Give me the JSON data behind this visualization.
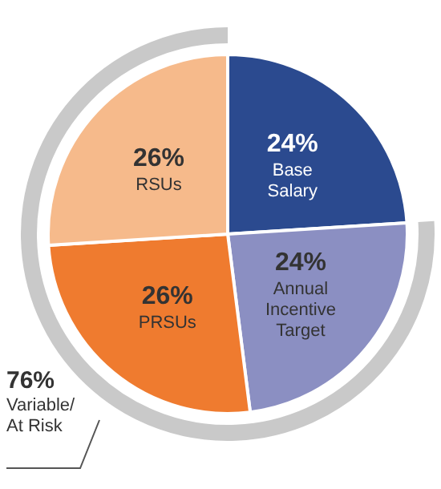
{
  "chart_data": {
    "type": "pie",
    "categories": [
      "Base Salary",
      "Annual Incentive Target",
      "PRSUs",
      "RSUs"
    ],
    "values": [
      24,
      24,
      26,
      26
    ],
    "colors": [
      "#2b4a8f",
      "#8b8fc2",
      "#ef7b2f",
      "#f6ba8b"
    ],
    "value_labels": [
      "24%",
      "24%",
      "26%",
      "26%"
    ],
    "annotations": [
      "76%\nVariable/\nAt Risk"
    ],
    "legend": false
  }
}
